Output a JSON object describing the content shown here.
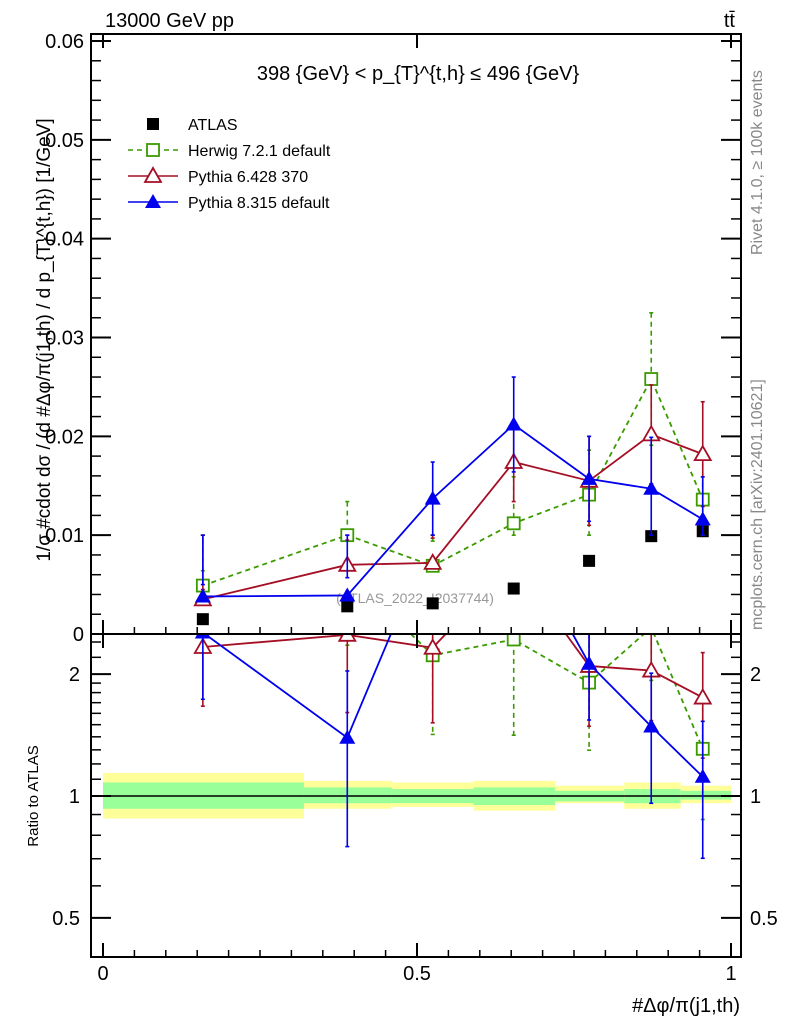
{
  "header": {
    "title": "13000 GeV pp",
    "process": "tt̄"
  },
  "side_labels": {
    "rivet": "Rivet 4.1.0, ≥ 100k events",
    "mcplots": "mcplots.cern.ch [arXiv:2401.10621]"
  },
  "chart_data": {
    "type": "scatter",
    "title": "398 {GeV} < p_{T}^{t,h} ≤ 496 {GeV}",
    "watermark": "(ATLAS_2022_I2037744)",
    "xlabel": "#Δφ/π(j1,th)",
    "ylabel": "1/σ #cdot dσ / (d #Δφ/π(j1,th) / d p_{T}^{t,h}) [1/GeV]",
    "ratio_ylabel": "Ratio to ATLAS",
    "xlim": [
      0,
      1
    ],
    "ylim": [
      0,
      0.061
    ],
    "ratio_ylim": [
      0.4,
      2.5
    ],
    "x_ticks": [
      "0",
      "0.5",
      "1"
    ],
    "x_tick_values": [
      0,
      0.5,
      1
    ],
    "y_ticks": [
      "0",
      "0.01",
      "0.02",
      "0.03",
      "0.04",
      "0.05",
      "0.06"
    ],
    "y_tick_values": [
      0,
      0.01,
      0.02,
      0.03,
      0.04,
      0.05,
      0.06
    ],
    "ratio_ticks": [
      "0.5",
      "1",
      "2"
    ],
    "ratio_tick_values": [
      0.5,
      1,
      2
    ],
    "x": [
      0.159,
      0.389,
      0.525,
      0.654,
      0.774,
      0.873,
      0.955
    ],
    "bin_edges": [
      0,
      0.32,
      0.46,
      0.59,
      0.72,
      0.83,
      0.92,
      1.0
    ],
    "band_outer": [
      [
        0.88,
        1.14
      ],
      [
        0.93,
        1.09
      ],
      [
        0.94,
        1.08
      ],
      [
        0.92,
        1.09
      ],
      [
        0.96,
        1.06
      ],
      [
        0.93,
        1.08
      ],
      [
        0.96,
        1.06
      ]
    ],
    "band_inner": [
      [
        0.93,
        1.08
      ],
      [
        0.96,
        1.05
      ],
      [
        0.96,
        1.04
      ],
      [
        0.95,
        1.05
      ],
      [
        0.97,
        1.03
      ],
      [
        0.96,
        1.04
      ],
      [
        0.98,
        1.03
      ]
    ],
    "series": [
      {
        "name": "ATLAS",
        "color": "#000000",
        "marker": "square-filled",
        "values": [
          0.0015,
          0.0028,
          0.0031,
          0.0046,
          0.0074,
          0.0099,
          0.0104
        ],
        "errors": null
      },
      {
        "name": "Herwig 7.2.1 default",
        "color": "#3a9a00",
        "marker": "square-open",
        "dashed": true,
        "values": [
          0.0049,
          0.01,
          0.0069,
          0.0112,
          0.0141,
          0.0258,
          0.0136
        ],
        "errors": [
          0.0015,
          0.0034,
          0.0025,
          0.0047,
          0.0045,
          0.0067,
          0.0045
        ]
      },
      {
        "name": "Pythia 6.428 370",
        "color": "#a50f25",
        "marker": "triangle-open",
        "values": [
          0.0035,
          0.007,
          0.0072,
          0.0174,
          0.0155,
          0.0202,
          0.0182
        ],
        "errors": [
          0.001,
          0.0025,
          0.0025,
          0.004,
          0.0045,
          0.005,
          0.0053
        ]
      },
      {
        "name": "Pythia 8.315 default",
        "color": "#0000ee",
        "marker": "triangle-filled",
        "values": [
          0.0038,
          0.0039,
          0.0137,
          0.0212,
          0.0157,
          0.0147,
          0.0116
        ],
        "errors": [
          0.0012,
          0.0018,
          0.0037,
          0.0048,
          0.0043,
          0.0052,
          0.0043
        ]
      }
    ],
    "legend_position": "top-left"
  }
}
